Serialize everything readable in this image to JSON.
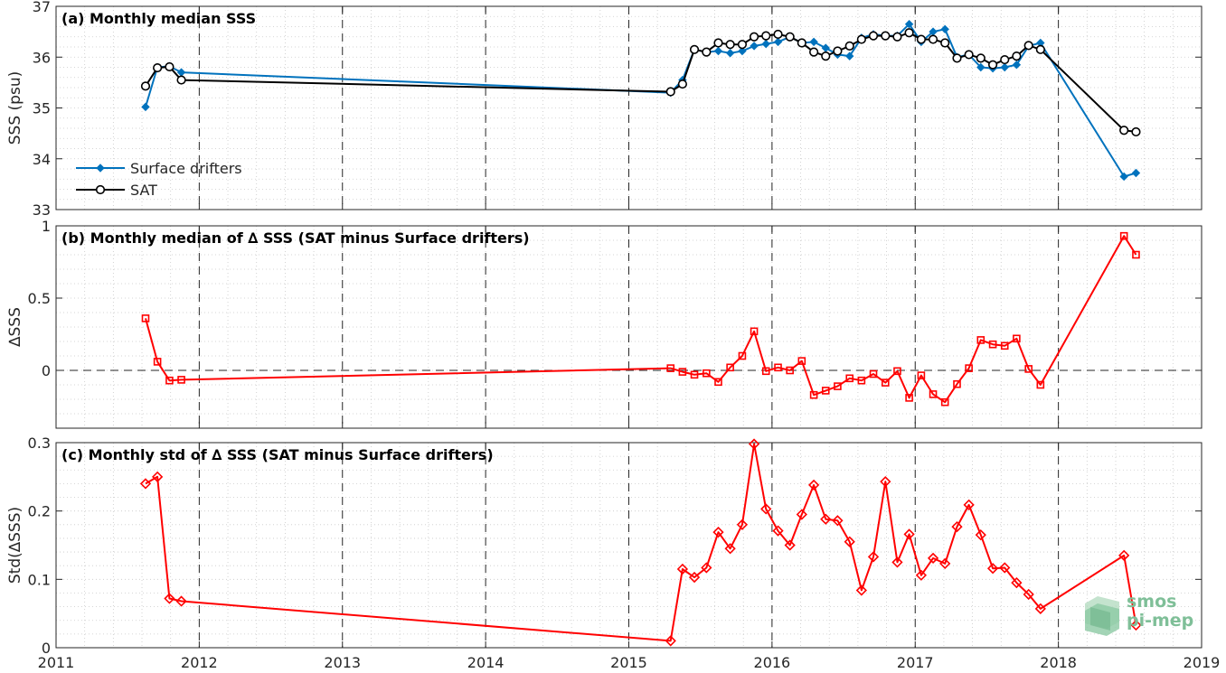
{
  "logo": {
    "line1": "smos",
    "line2": "pi-mep"
  },
  "chart_data": [
    {
      "id": "a",
      "type": "line",
      "title": "(a) Monthly median SSS",
      "ylabel": "SSS (psu)",
      "xlim": [
        2011,
        2019
      ],
      "ylim": [
        33,
        37
      ],
      "xticks": [
        2011,
        2012,
        2013,
        2014,
        2015,
        2016,
        2017,
        2018,
        2019
      ],
      "yticks": [
        33,
        34,
        35,
        36,
        37
      ],
      "grid": true,
      "legend_position": "lower-left",
      "series": [
        {
          "name": "Surface drifters",
          "color": "#0072BD",
          "marker": "diamond-filled",
          "x": [
            2011.625,
            2011.708,
            2011.792,
            2011.875,
            2015.292,
            2015.375,
            2015.458,
            2015.542,
            2015.625,
            2015.708,
            2015.792,
            2015.875,
            2015.958,
            2016.042,
            2016.125,
            2016.208,
            2016.292,
            2016.375,
            2016.458,
            2016.542,
            2016.625,
            2016.708,
            2016.792,
            2016.875,
            2016.958,
            2017.042,
            2017.125,
            2017.208,
            2017.292,
            2017.375,
            2017.458,
            2017.542,
            2017.625,
            2017.708,
            2017.792,
            2017.875,
            2018.458,
            2018.542
          ],
          "y": [
            35.02,
            35.8,
            35.82,
            35.7,
            35.3,
            35.55,
            36.15,
            36.1,
            36.12,
            36.08,
            36.12,
            36.22,
            36.26,
            36.3,
            36.4,
            36.28,
            36.3,
            36.18,
            36.05,
            36.02,
            36.38,
            36.45,
            36.42,
            36.42,
            36.65,
            36.3,
            36.5,
            36.55,
            36.0,
            36.05,
            35.8,
            35.78,
            35.8,
            35.85,
            36.22,
            36.28,
            33.65,
            33.72
          ]
        },
        {
          "name": "SAT",
          "color": "#000000",
          "marker": "circle-open",
          "x": [
            2011.625,
            2011.708,
            2011.792,
            2011.875,
            2015.292,
            2015.375,
            2015.458,
            2015.542,
            2015.625,
            2015.708,
            2015.792,
            2015.875,
            2015.958,
            2016.042,
            2016.125,
            2016.208,
            2016.292,
            2016.375,
            2016.458,
            2016.542,
            2016.625,
            2016.708,
            2016.792,
            2016.875,
            2016.958,
            2017.042,
            2017.125,
            2017.208,
            2017.292,
            2017.375,
            2017.458,
            2017.542,
            2017.625,
            2017.708,
            2017.792,
            2017.875,
            2018.458,
            2018.542
          ],
          "y": [
            35.43,
            35.79,
            35.81,
            35.55,
            35.32,
            35.47,
            36.15,
            36.1,
            36.28,
            36.25,
            36.25,
            36.4,
            36.42,
            36.45,
            36.4,
            36.28,
            36.1,
            36.02,
            36.12,
            36.22,
            36.35,
            36.42,
            36.42,
            36.4,
            36.48,
            36.35,
            36.35,
            36.28,
            35.98,
            36.05,
            35.98,
            35.85,
            35.95,
            36.02,
            36.23,
            36.15,
            34.56,
            34.53
          ]
        }
      ]
    },
    {
      "id": "b",
      "type": "line",
      "title": "(b) Monthly median of ∆ SSS (SAT minus Surface drifters)",
      "ylabel": "∆SSS",
      "xlim": [
        2011,
        2019
      ],
      "ylim": [
        -0.4,
        1
      ],
      "xticks": [
        2011,
        2012,
        2013,
        2014,
        2015,
        2016,
        2017,
        2018,
        2019
      ],
      "yticks": [
        0,
        0.5,
        1
      ],
      "grid": true,
      "zero_line": true,
      "series": [
        {
          "name": "",
          "color": "#FF0000",
          "marker": "square-open",
          "x": [
            2011.625,
            2011.708,
            2011.792,
            2011.875,
            2015.292,
            2015.375,
            2015.458,
            2015.542,
            2015.625,
            2015.708,
            2015.792,
            2015.875,
            2015.958,
            2016.042,
            2016.125,
            2016.208,
            2016.292,
            2016.375,
            2016.458,
            2016.542,
            2016.625,
            2016.708,
            2016.792,
            2016.875,
            2016.958,
            2017.042,
            2017.125,
            2017.208,
            2017.292,
            2017.375,
            2017.458,
            2017.542,
            2017.625,
            2017.708,
            2017.792,
            2017.875,
            2018.458,
            2018.542
          ],
          "y": [
            0.36,
            0.06,
            -0.07,
            -0.065,
            0.015,
            -0.01,
            -0.03,
            -0.02,
            -0.08,
            0.02,
            0.1,
            0.27,
            -0.005,
            0.02,
            0.0,
            0.065,
            -0.17,
            -0.14,
            -0.11,
            -0.055,
            -0.07,
            -0.025,
            -0.085,
            -0.005,
            -0.19,
            -0.035,
            -0.165,
            -0.22,
            -0.095,
            0.015,
            0.21,
            0.18,
            0.17,
            0.22,
            0.01,
            -0.1,
            0.93,
            0.8
          ]
        }
      ]
    },
    {
      "id": "c",
      "type": "line",
      "title": "(c) Monthly std of ∆ SSS (SAT minus Surface drifters)",
      "ylabel": "Std(∆SSS)",
      "xlim": [
        2011,
        2019
      ],
      "ylim": [
        0,
        0.3
      ],
      "xticks": [
        2011,
        2012,
        2013,
        2014,
        2015,
        2016,
        2017,
        2018,
        2019
      ],
      "yticks": [
        0,
        0.1,
        0.2,
        0.3
      ],
      "grid": true,
      "series": [
        {
          "name": "",
          "color": "#FF0000",
          "marker": "diamond-open",
          "x": [
            2011.625,
            2011.708,
            2011.792,
            2011.875,
            2015.292,
            2015.375,
            2015.458,
            2015.542,
            2015.625,
            2015.708,
            2015.792,
            2015.875,
            2015.958,
            2016.042,
            2016.125,
            2016.208,
            2016.292,
            2016.375,
            2016.458,
            2016.542,
            2016.625,
            2016.708,
            2016.792,
            2016.875,
            2016.958,
            2017.042,
            2017.125,
            2017.208,
            2017.292,
            2017.375,
            2017.458,
            2017.542,
            2017.625,
            2017.708,
            2017.792,
            2017.875,
            2018.458,
            2018.542
          ],
          "y": [
            0.24,
            0.25,
            0.072,
            0.068,
            0.01,
            0.115,
            0.103,
            0.117,
            0.169,
            0.145,
            0.18,
            0.298,
            0.203,
            0.171,
            0.15,
            0.195,
            0.238,
            0.188,
            0.186,
            0.155,
            0.084,
            0.133,
            0.243,
            0.125,
            0.166,
            0.106,
            0.131,
            0.123,
            0.177,
            0.209,
            0.165,
            0.116,
            0.117,
            0.095,
            0.078,
            0.057,
            0.135,
            0.033
          ]
        }
      ]
    }
  ]
}
